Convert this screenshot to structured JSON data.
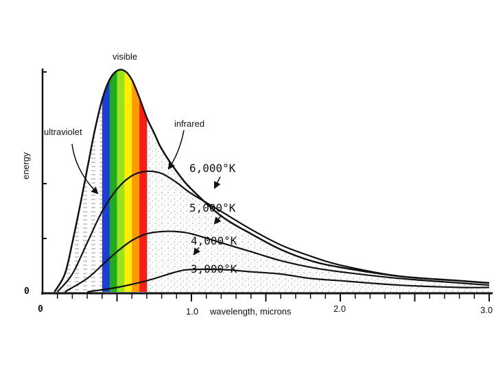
{
  "chart_data": {
    "type": "line",
    "xlabel": "wavelength, microns",
    "ylabel": "energy",
    "xlim": [
      0,
      3.0
    ],
    "ylim": [
      0,
      1.0
    ],
    "x_ticks": [
      "0",
      "1.0",
      "2.0",
      "3.0"
    ],
    "y_ticks": [
      "0"
    ],
    "grid": false,
    "bands": [
      {
        "label": "ultraviolet",
        "range": [
          0.0,
          0.4
        ]
      },
      {
        "label": "visible",
        "range": [
          0.4,
          0.7
        ]
      },
      {
        "label": "infrared",
        "range": [
          0.7,
          3.0
        ]
      }
    ],
    "spectrum_colors": [
      "#1a3fd6",
      "#1faa1f",
      "#9be21b",
      "#ffee00",
      "#ff9a00",
      "#ff1a1a"
    ],
    "series": [
      {
        "name": "6,000°K",
        "x": [
          0.08,
          0.15,
          0.2,
          0.25,
          0.3,
          0.35,
          0.4,
          0.45,
          0.5,
          0.55,
          0.6,
          0.65,
          0.7,
          0.75,
          0.8,
          0.9,
          1.0,
          1.2,
          1.4,
          1.6,
          1.8,
          2.0,
          2.4,
          2.8,
          3.0
        ],
        "y": [
          0.0,
          0.08,
          0.22,
          0.38,
          0.55,
          0.72,
          0.86,
          0.95,
          0.99,
          0.99,
          0.95,
          0.87,
          0.78,
          0.71,
          0.64,
          0.54,
          0.46,
          0.34,
          0.26,
          0.19,
          0.14,
          0.11,
          0.07,
          0.05,
          0.04
        ]
      },
      {
        "name": "5,000°K",
        "x": [
          0.1,
          0.2,
          0.3,
          0.4,
          0.5,
          0.6,
          0.7,
          0.8,
          0.9,
          1.0,
          1.2,
          1.4,
          1.6,
          1.8,
          2.0,
          2.4,
          2.8,
          3.0
        ],
        "y": [
          0.0,
          0.08,
          0.22,
          0.36,
          0.46,
          0.52,
          0.54,
          0.53,
          0.49,
          0.44,
          0.36,
          0.28,
          0.21,
          0.16,
          0.12,
          0.07,
          0.05,
          0.04
        ]
      },
      {
        "name": "4,000°K",
        "x": [
          0.15,
          0.3,
          0.4,
          0.5,
          0.6,
          0.7,
          0.8,
          0.9,
          1.0,
          1.2,
          1.4,
          1.6,
          1.8,
          2.0,
          2.4,
          2.8,
          3.0
        ],
        "y": [
          0.0,
          0.06,
          0.12,
          0.18,
          0.23,
          0.26,
          0.27,
          0.27,
          0.26,
          0.22,
          0.18,
          0.14,
          0.11,
          0.09,
          0.06,
          0.04,
          0.03
        ]
      },
      {
        "name": "3,000°K",
        "x": [
          0.3,
          0.5,
          0.7,
          0.9,
          1.0,
          1.2,
          1.4,
          1.6,
          1.8,
          2.0,
          2.4,
          2.8,
          3.0
        ],
        "y": [
          0.0,
          0.02,
          0.05,
          0.09,
          0.1,
          0.1,
          0.09,
          0.08,
          0.06,
          0.05,
          0.03,
          0.02,
          0.02
        ]
      }
    ]
  }
}
